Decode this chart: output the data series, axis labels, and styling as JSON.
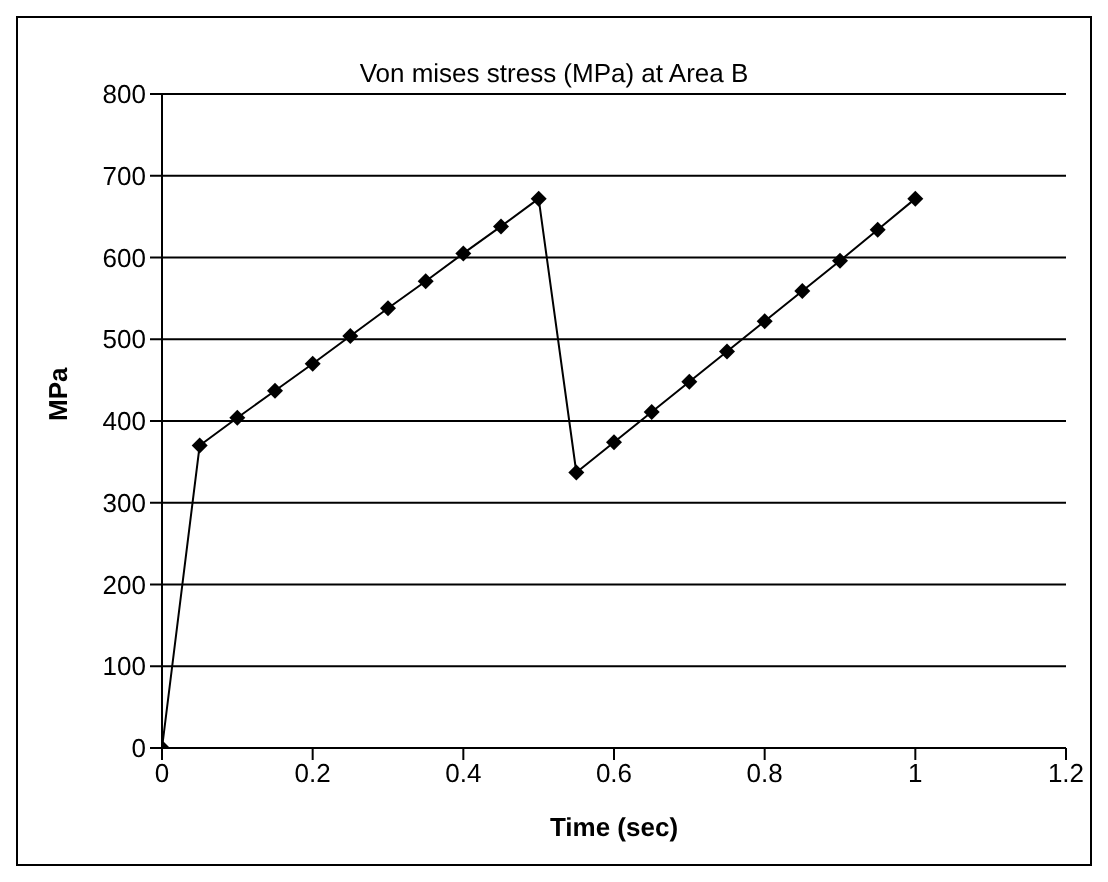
{
  "chart_data": {
    "type": "line",
    "title": "Von mises stress (MPa) at Area B",
    "xlabel": "Time (sec)",
    "ylabel": "MPa",
    "x": [
      0,
      0.05,
      0.1,
      0.15,
      0.2,
      0.25,
      0.3,
      0.35,
      0.4,
      0.45,
      0.5,
      0.55,
      0.6,
      0.65,
      0.7,
      0.75,
      0.8,
      0.85,
      0.9,
      0.95,
      1.0
    ],
    "series": [
      {
        "color": "#000000",
        "values": [
          0,
          370,
          404,
          437,
          470,
          504,
          538,
          571,
          605,
          638,
          672,
          337,
          374,
          411,
          448,
          485,
          522,
          559,
          596,
          634,
          672
        ]
      }
    ],
    "xlim": [
      0,
      1.2
    ],
    "xticks": [
      0,
      0.2,
      0.4,
      0.6,
      0.8,
      1,
      1.2
    ],
    "ylim": [
      0,
      800
    ],
    "yticks": [
      0,
      100,
      200,
      300,
      400,
      500,
      600,
      700,
      800
    ],
    "grid": "y",
    "legend": false,
    "marker": "diamond",
    "line_style": "solid"
  }
}
